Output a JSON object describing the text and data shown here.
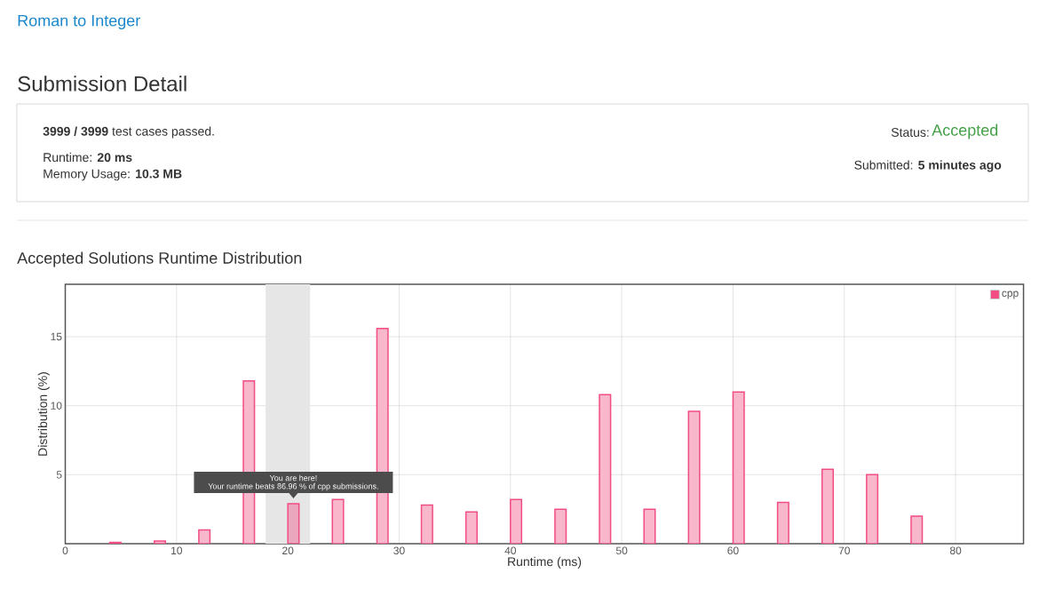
{
  "chart_data": {
    "type": "bar",
    "title": "Accepted Solutions Runtime Distribution",
    "xlabel": "Runtime (ms)",
    "ylabel": "Distribution (%)",
    "x": [
      4.5,
      8.5,
      12.5,
      16.5,
      20.5,
      24.5,
      28.5,
      32.5,
      36.5,
      40.5,
      44.5,
      48.5,
      52.5,
      56.5,
      60.5,
      64.5,
      68.5,
      72.5,
      76.5
    ],
    "series": [
      {
        "name": "cpp",
        "color": "#f24d82",
        "values": [
          0.1,
          0.2,
          1.0,
          11.8,
          2.9,
          3.2,
          15.6,
          2.8,
          2.3,
          3.2,
          2.5,
          10.8,
          2.5,
          9.6,
          11.0,
          3.0,
          5.4,
          5.0,
          2.0
        ]
      }
    ],
    "colors": [
      "#f9b7cb",
      "#f9b7cb",
      "#f9b7cb",
      "#f9b7cb",
      "#eaa6bd",
      "#f9b7cb",
      "#f9b7cb",
      "#f9b7cb",
      "#f9b7cb",
      "#f9b7cb",
      "#f9b7cb",
      "#f9b7cb",
      "#f9b7cb",
      "#f9b7cb",
      "#f9b7cb",
      "#f9b7cb",
      "#f9b7cb",
      "#f9b7cb",
      "#f9b7cb"
    ],
    "xlim": [
      0,
      86.1
    ],
    "ylim": [
      0,
      18.8
    ],
    "xticks": [
      0,
      10,
      20,
      30,
      40,
      50,
      60,
      70,
      80
    ],
    "yticks": [
      5,
      10,
      15
    ],
    "grid": true,
    "legend": "top right",
    "bands": [
      {
        "axis": "x",
        "from": 18,
        "to": 22,
        "color": "#e6e6e6"
      }
    ],
    "annotations": [
      "Roman to Integer",
      "Submission Detail",
      "**3999 / 3999** test cases passed.",
      "Runtime: **20 ms**",
      "Memory Usage: **10.3 MB**",
      "Status:",
      "Accepted",
      "Submitted: **5 minutes ago**",
      {
        "text": "You are here!",
        "x": 20.5,
        "y": 2.9
      },
      {
        "text": "Your runtime beats 86.96 % of cpp submissions.",
        "x": 20.5,
        "y": 2.9
      }
    ]
  }
}
